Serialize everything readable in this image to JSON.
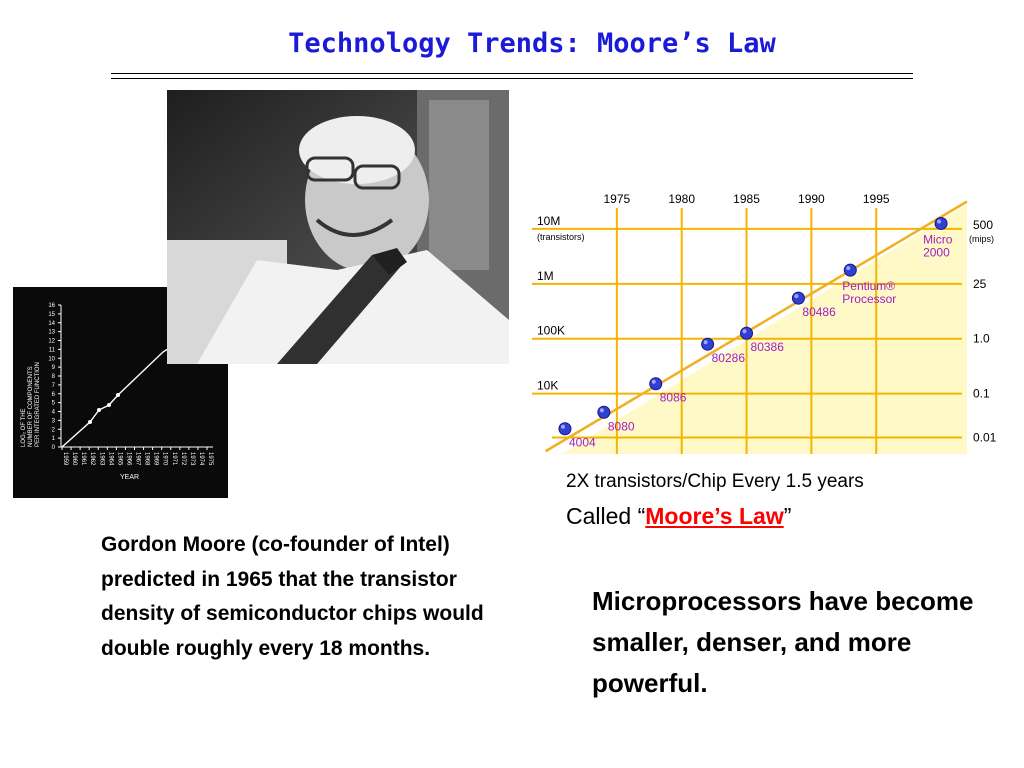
{
  "slide": {
    "title": "Technology Trends: Moore’s Law",
    "caption_line1": "2X transistors/Chip Every 1.5 years",
    "caption_line2_prefix": "Called “",
    "caption_line2_link": "Moore’s Law",
    "caption_line2_suffix": "”",
    "paragraph_left": "Gordon Moore (co-founder of Intel) predicted in 1965 that the transistor density of semiconductor chips would double roughly every 18 months.",
    "paragraph_right": "Microprocessors have become smaller, denser, and more powerful."
  },
  "colors": {
    "title": "#1a1ad8",
    "link": "#ff0000",
    "chart_fill": "#fff9c8",
    "chart_grid": "#f5b400",
    "chart_labels": "#a020c0",
    "chart_points": "#3040d0"
  },
  "old_graph": {
    "y_axis_label": [
      "LOG₂ OF THE",
      "NUMBER OF COMPONENTS",
      "PER INTEGRATED FUNCTION"
    ],
    "x_axis_label": "YEAR",
    "y_ticks": [
      "0",
      "1",
      "2",
      "3",
      "4",
      "5",
      "6",
      "7",
      "8",
      "9",
      "10",
      "11",
      "12",
      "13",
      "14",
      "15",
      "16"
    ],
    "x_ticks": [
      "1959",
      "1960",
      "1961",
      "1962",
      "1963",
      "1964",
      "1965",
      "1966",
      "1967",
      "1968",
      "1969",
      "1970",
      "1971",
      "1972",
      "1973",
      "1974",
      "1975"
    ]
  },
  "chart_data": {
    "type": "scatter",
    "x_ticks": [
      "1975",
      "1980",
      "1985",
      "1990",
      "1995"
    ],
    "left_ticks": [
      {
        "label": "10M",
        "sub": "(transistors)"
      },
      {
        "label": "1M",
        "sub": ""
      },
      {
        "label": "100K",
        "sub": ""
      },
      {
        "label": "10K",
        "sub": ""
      }
    ],
    "right_ticks": [
      {
        "label": "500",
        "sub": "(mips)"
      },
      {
        "label": "25",
        "sub": ""
      },
      {
        "label": "1.0",
        "sub": ""
      },
      {
        "label": "0.1",
        "sub": ""
      },
      {
        "label": "0.01",
        "sub": ""
      }
    ],
    "points": [
      {
        "name": "4004",
        "year": 1971,
        "log_transistors": 3.36
      },
      {
        "name": "8080",
        "year": 1974,
        "log_transistors": 3.66
      },
      {
        "name": "8086",
        "year": 1978,
        "log_transistors": 4.18
      },
      {
        "name": "80286",
        "year": 1982,
        "log_transistors": 4.9
      },
      {
        "name": "80386",
        "year": 1985,
        "log_transistors": 5.1
      },
      {
        "name": "80486",
        "year": 1989,
        "log_transistors": 5.74
      },
      {
        "name": "Pentium® Processor",
        "year": 1993,
        "log_transistors": 6.25
      },
      {
        "name": "Micro 2000",
        "year": 2000,
        "log_transistors": 7.1
      }
    ],
    "xlim": [
      1970,
      2002
    ],
    "ylim": [
      2.9,
      7.6
    ]
  }
}
